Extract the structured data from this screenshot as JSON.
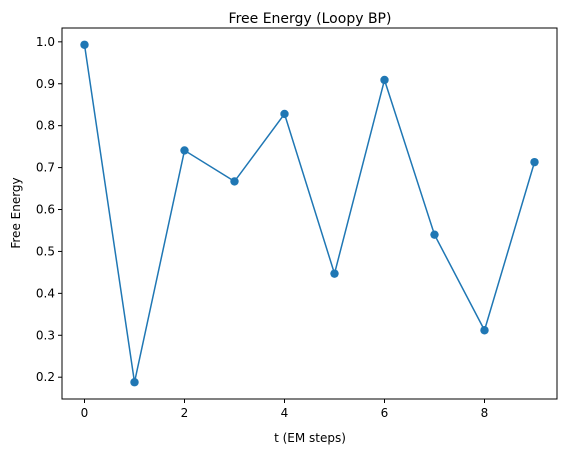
{
  "chart_data": {
    "type": "line",
    "title": "Free Energy (Loopy BP)",
    "xlabel": "t (EM steps)",
    "ylabel": "Free Energy",
    "x": [
      0,
      1,
      2,
      3,
      4,
      5,
      6,
      7,
      8,
      9
    ],
    "series": [
      {
        "values": [
          0.993,
          0.188,
          0.741,
          0.667,
          0.828,
          0.447,
          0.909,
          0.54,
          0.312,
          0.713
        ],
        "color": "#1f77b4",
        "marker": "circle"
      }
    ],
    "xlim": [
      -0.45,
      9.45
    ],
    "ylim": [
      0.148,
      1.033
    ],
    "xticks": [
      0,
      2,
      4,
      6,
      8
    ],
    "xtick_labels": [
      "0",
      "2",
      "4",
      "6",
      "8"
    ],
    "yticks": [
      0.2,
      0.3,
      0.4,
      0.5,
      0.6,
      0.7,
      0.8,
      0.9,
      1.0
    ],
    "ytick_labels": [
      "0.2",
      "0.3",
      "0.4",
      "0.5",
      "0.6",
      "0.7",
      "0.8",
      "0.9",
      "1.0"
    ],
    "grid": false,
    "legend": "none"
  }
}
